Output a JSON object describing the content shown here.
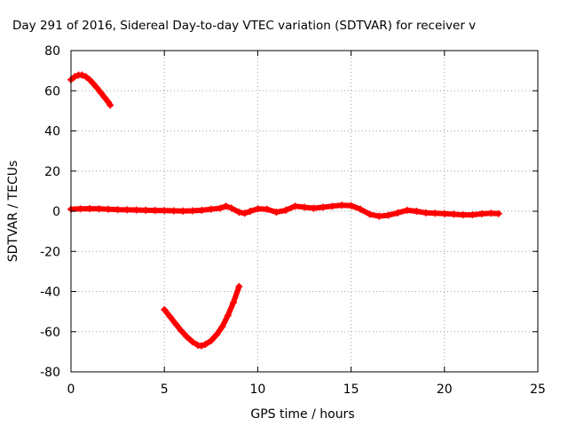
{
  "chart_data": {
    "type": "scatter",
    "title": "Day 291 of 2016, Sidereal Day-to-day VTEC variation (SDTVAR) for receiver v",
    "xlabel": "GPS time / hours",
    "ylabel": "SDTVAR / TECUs",
    "xlim": [
      0,
      25
    ],
    "ylim": [
      -80,
      80
    ],
    "xticks": [
      0,
      5,
      10,
      15,
      20,
      25
    ],
    "yticks": [
      -80,
      -60,
      -40,
      -20,
      0,
      20,
      40,
      60,
      80
    ],
    "grid": true,
    "legend": "none",
    "marker_color": "#ff0000",
    "series": [
      {
        "values": [
          [
            0.0,
            65.5
          ],
          [
            0.2,
            67.0
          ],
          [
            0.4,
            67.8
          ],
          [
            0.6,
            67.8
          ],
          [
            0.8,
            67.0
          ],
          [
            1.0,
            65.5
          ],
          [
            1.2,
            63.5
          ],
          [
            1.4,
            61.3
          ],
          [
            1.6,
            59.0
          ],
          [
            1.8,
            56.6
          ],
          [
            2.0,
            54.3
          ],
          [
            2.1,
            52.8
          ]
        ]
      },
      {
        "values": [
          [
            0.0,
            1.0
          ],
          [
            0.5,
            1.2
          ],
          [
            1.0,
            1.3
          ],
          [
            1.5,
            1.2
          ],
          [
            2.0,
            1.0
          ],
          [
            2.5,
            0.8
          ],
          [
            3.0,
            0.7
          ],
          [
            3.5,
            0.6
          ],
          [
            4.0,
            0.5
          ],
          [
            4.5,
            0.4
          ],
          [
            5.0,
            0.3
          ],
          [
            5.5,
            0.2
          ],
          [
            6.0,
            0.1
          ],
          [
            6.5,
            0.2
          ],
          [
            7.0,
            0.5
          ],
          [
            7.5,
            1.0
          ],
          [
            8.0,
            1.5
          ],
          [
            8.3,
            2.5
          ],
          [
            8.6,
            1.5
          ],
          [
            9.0,
            -0.5
          ],
          [
            9.3,
            -1.0
          ],
          [
            9.6,
            0.0
          ],
          [
            10.0,
            1.2
          ],
          [
            10.5,
            1.0
          ],
          [
            11.0,
            -0.5
          ],
          [
            11.5,
            0.5
          ],
          [
            12.0,
            2.5
          ],
          [
            12.5,
            2.0
          ],
          [
            13.0,
            1.5
          ],
          [
            13.5,
            2.0
          ],
          [
            14.0,
            2.5
          ],
          [
            14.5,
            3.0
          ],
          [
            15.0,
            2.8
          ],
          [
            15.5,
            1.0
          ],
          [
            16.0,
            -1.5
          ],
          [
            16.5,
            -2.5
          ],
          [
            17.0,
            -2.0
          ],
          [
            17.5,
            -0.8
          ],
          [
            18.0,
            0.5
          ],
          [
            18.5,
            0.0
          ],
          [
            19.0,
            -0.8
          ],
          [
            19.5,
            -1.0
          ],
          [
            20.0,
            -1.2
          ],
          [
            20.5,
            -1.5
          ],
          [
            21.0,
            -1.8
          ],
          [
            21.5,
            -1.8
          ],
          [
            22.0,
            -1.3
          ],
          [
            22.5,
            -1.0
          ],
          [
            22.9,
            -1.2
          ]
        ]
      },
      {
        "values": [
          [
            5.0,
            -49.0
          ],
          [
            5.3,
            -52.5
          ],
          [
            5.6,
            -56.0
          ],
          [
            5.9,
            -59.5
          ],
          [
            6.2,
            -62.5
          ],
          [
            6.5,
            -65.0
          ],
          [
            6.8,
            -66.8
          ],
          [
            7.0,
            -67.0
          ],
          [
            7.2,
            -66.3
          ],
          [
            7.5,
            -64.5
          ],
          [
            7.8,
            -61.5
          ],
          [
            8.1,
            -57.5
          ],
          [
            8.4,
            -52.0
          ],
          [
            8.7,
            -45.5
          ],
          [
            9.0,
            -37.5
          ]
        ]
      }
    ]
  }
}
